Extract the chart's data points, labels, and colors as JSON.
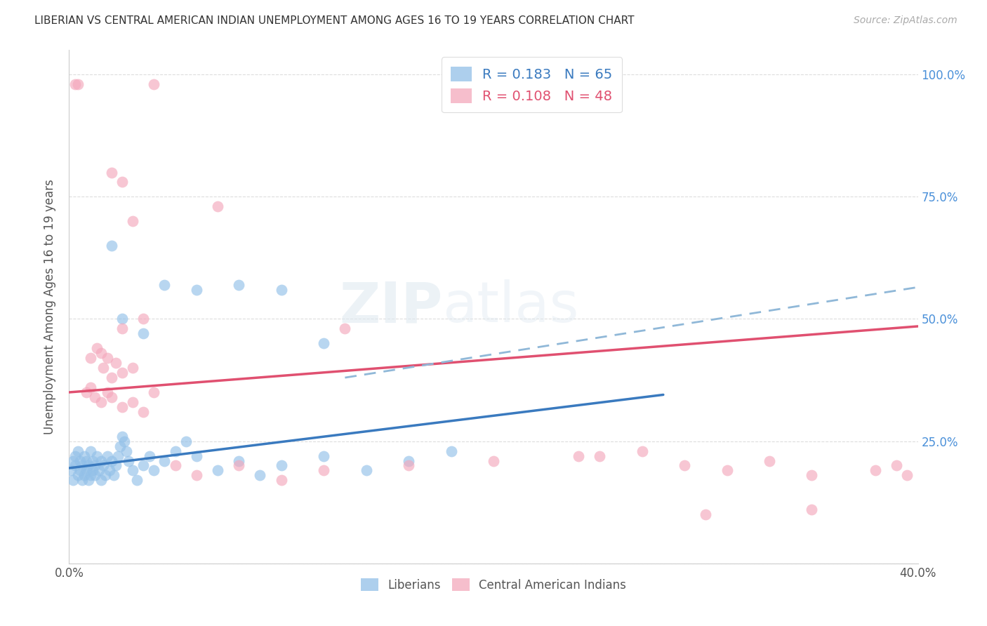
{
  "title": "LIBERIAN VS CENTRAL AMERICAN INDIAN UNEMPLOYMENT AMONG AGES 16 TO 19 YEARS CORRELATION CHART",
  "source": "Source: ZipAtlas.com",
  "ylabel": "Unemployment Among Ages 16 to 19 years",
  "xlim": [
    0.0,
    0.4
  ],
  "ylim": [
    0.0,
    1.05
  ],
  "x_tick_positions": [
    0.0,
    0.05,
    0.1,
    0.15,
    0.2,
    0.25,
    0.3,
    0.35,
    0.4
  ],
  "x_tick_labels": [
    "0.0%",
    "",
    "",
    "",
    "",
    "",
    "",
    "",
    "40.0%"
  ],
  "y_tick_positions": [
    0.0,
    0.25,
    0.5,
    0.75,
    1.0
  ],
  "y_tick_labels_right": [
    "",
    "25.0%",
    "50.0%",
    "75.0%",
    "100.0%"
  ],
  "blue_color": "#92c0e8",
  "pink_color": "#f4a8bc",
  "blue_line_color": "#3a7abf",
  "pink_line_color": "#e05070",
  "blue_dash_color": "#90b8d8",
  "watermark": "ZIPatlas",
  "lib_legend": "R = 0.183   N = 65",
  "ca_legend": "R = 0.108   N = 48",
  "lib_legend_color": "#3a7abf",
  "ca_legend_color": "#e05070",
  "blue_line_x0": 0.0,
  "blue_line_y0": 0.195,
  "blue_line_x1": 0.28,
  "blue_line_y1": 0.345,
  "pink_line_x0": 0.0,
  "pink_line_y0": 0.35,
  "pink_line_x1": 0.4,
  "pink_line_y1": 0.485,
  "dash_line_x0": 0.13,
  "dash_line_y0": 0.38,
  "dash_line_x1": 0.4,
  "dash_line_y1": 0.565,
  "liberian_points": [
    [
      0.001,
      0.19
    ],
    [
      0.002,
      0.17
    ],
    [
      0.002,
      0.21
    ],
    [
      0.003,
      0.2
    ],
    [
      0.003,
      0.22
    ],
    [
      0.004,
      0.18
    ],
    [
      0.004,
      0.23
    ],
    [
      0.005,
      0.19
    ],
    [
      0.005,
      0.21
    ],
    [
      0.006,
      0.17
    ],
    [
      0.006,
      0.2
    ],
    [
      0.007,
      0.18
    ],
    [
      0.007,
      0.22
    ],
    [
      0.008,
      0.19
    ],
    [
      0.008,
      0.21
    ],
    [
      0.009,
      0.17
    ],
    [
      0.009,
      0.2
    ],
    [
      0.01,
      0.18
    ],
    [
      0.01,
      0.23
    ],
    [
      0.011,
      0.19
    ],
    [
      0.011,
      0.21
    ],
    [
      0.012,
      0.18
    ],
    [
      0.012,
      0.2
    ],
    [
      0.013,
      0.22
    ],
    [
      0.014,
      0.19
    ],
    [
      0.015,
      0.21
    ],
    [
      0.015,
      0.17
    ],
    [
      0.016,
      0.2
    ],
    [
      0.017,
      0.18
    ],
    [
      0.018,
      0.22
    ],
    [
      0.019,
      0.19
    ],
    [
      0.02,
      0.21
    ],
    [
      0.021,
      0.18
    ],
    [
      0.022,
      0.2
    ],
    [
      0.023,
      0.22
    ],
    [
      0.024,
      0.24
    ],
    [
      0.025,
      0.26
    ],
    [
      0.026,
      0.25
    ],
    [
      0.027,
      0.23
    ],
    [
      0.028,
      0.21
    ],
    [
      0.03,
      0.19
    ],
    [
      0.032,
      0.17
    ],
    [
      0.035,
      0.2
    ],
    [
      0.038,
      0.22
    ],
    [
      0.04,
      0.19
    ],
    [
      0.045,
      0.21
    ],
    [
      0.05,
      0.23
    ],
    [
      0.055,
      0.25
    ],
    [
      0.06,
      0.22
    ],
    [
      0.07,
      0.19
    ],
    [
      0.08,
      0.21
    ],
    [
      0.09,
      0.18
    ],
    [
      0.1,
      0.2
    ],
    [
      0.12,
      0.22
    ],
    [
      0.14,
      0.19
    ],
    [
      0.16,
      0.21
    ],
    [
      0.18,
      0.23
    ],
    [
      0.02,
      0.65
    ],
    [
      0.08,
      0.57
    ],
    [
      0.1,
      0.56
    ],
    [
      0.045,
      0.57
    ],
    [
      0.06,
      0.56
    ],
    [
      0.025,
      0.5
    ],
    [
      0.035,
      0.47
    ],
    [
      0.12,
      0.45
    ]
  ],
  "ca_indian_points": [
    [
      0.003,
      0.98
    ],
    [
      0.004,
      0.98
    ],
    [
      0.04,
      0.98
    ],
    [
      0.02,
      0.8
    ],
    [
      0.025,
      0.78
    ],
    [
      0.03,
      0.7
    ],
    [
      0.07,
      0.73
    ],
    [
      0.025,
      0.48
    ],
    [
      0.035,
      0.5
    ],
    [
      0.13,
      0.48
    ],
    [
      0.01,
      0.42
    ],
    [
      0.015,
      0.43
    ],
    [
      0.013,
      0.44
    ],
    [
      0.016,
      0.4
    ],
    [
      0.018,
      0.42
    ],
    [
      0.022,
      0.41
    ],
    [
      0.02,
      0.38
    ],
    [
      0.03,
      0.4
    ],
    [
      0.025,
      0.39
    ],
    [
      0.008,
      0.35
    ],
    [
      0.01,
      0.36
    ],
    [
      0.012,
      0.34
    ],
    [
      0.015,
      0.33
    ],
    [
      0.018,
      0.35
    ],
    [
      0.02,
      0.34
    ],
    [
      0.025,
      0.32
    ],
    [
      0.03,
      0.33
    ],
    [
      0.035,
      0.31
    ],
    [
      0.04,
      0.35
    ],
    [
      0.05,
      0.2
    ],
    [
      0.06,
      0.18
    ],
    [
      0.08,
      0.2
    ],
    [
      0.1,
      0.17
    ],
    [
      0.12,
      0.19
    ],
    [
      0.16,
      0.2
    ],
    [
      0.2,
      0.21
    ],
    [
      0.24,
      0.22
    ],
    [
      0.27,
      0.23
    ],
    [
      0.29,
      0.2
    ],
    [
      0.31,
      0.19
    ],
    [
      0.33,
      0.21
    ],
    [
      0.35,
      0.18
    ],
    [
      0.38,
      0.19
    ],
    [
      0.39,
      0.2
    ],
    [
      0.395,
      0.18
    ],
    [
      0.35,
      0.11
    ],
    [
      0.3,
      0.1
    ],
    [
      0.25,
      0.22
    ]
  ]
}
